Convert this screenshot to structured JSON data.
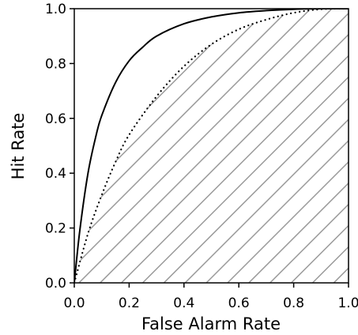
{
  "chart_data": {
    "type": "line",
    "title": "",
    "xlabel": "False Alarm Rate",
    "ylabel": "Hit Rate",
    "xlim": [
      0.0,
      1.0
    ],
    "ylim": [
      0.0,
      1.0
    ],
    "x_ticks": [
      "0.0",
      "0.2",
      "0.4",
      "0.6",
      "0.8",
      "1.0"
    ],
    "y_ticks": [
      "0.0",
      "0.2",
      "0.4",
      "0.6",
      "0.8",
      "1.0"
    ],
    "grid": false,
    "legend": "none",
    "shaded_region": "hatched area under dotted curve",
    "series": [
      {
        "style": "solid",
        "color": "#000000",
        "x": [
          0.0,
          0.02,
          0.05,
          0.08,
          0.1,
          0.15,
          0.2,
          0.25,
          0.3,
          0.4,
          0.5,
          0.6,
          0.7,
          0.8,
          0.9,
          1.0
        ],
        "y": [
          0.0,
          0.19,
          0.4,
          0.54,
          0.61,
          0.73,
          0.81,
          0.86,
          0.9,
          0.945,
          0.97,
          0.985,
          0.993,
          0.998,
          1.0,
          1.0
        ]
      },
      {
        "style": "dotted",
        "color": "#000000",
        "x": [
          0.0,
          0.05,
          0.1,
          0.15,
          0.2,
          0.3,
          0.4,
          0.5,
          0.6,
          0.7,
          0.8,
          0.9,
          1.0
        ],
        "y": [
          0.0,
          0.18,
          0.32,
          0.44,
          0.54,
          0.68,
          0.79,
          0.87,
          0.925,
          0.96,
          0.985,
          0.998,
          1.0
        ]
      }
    ]
  }
}
